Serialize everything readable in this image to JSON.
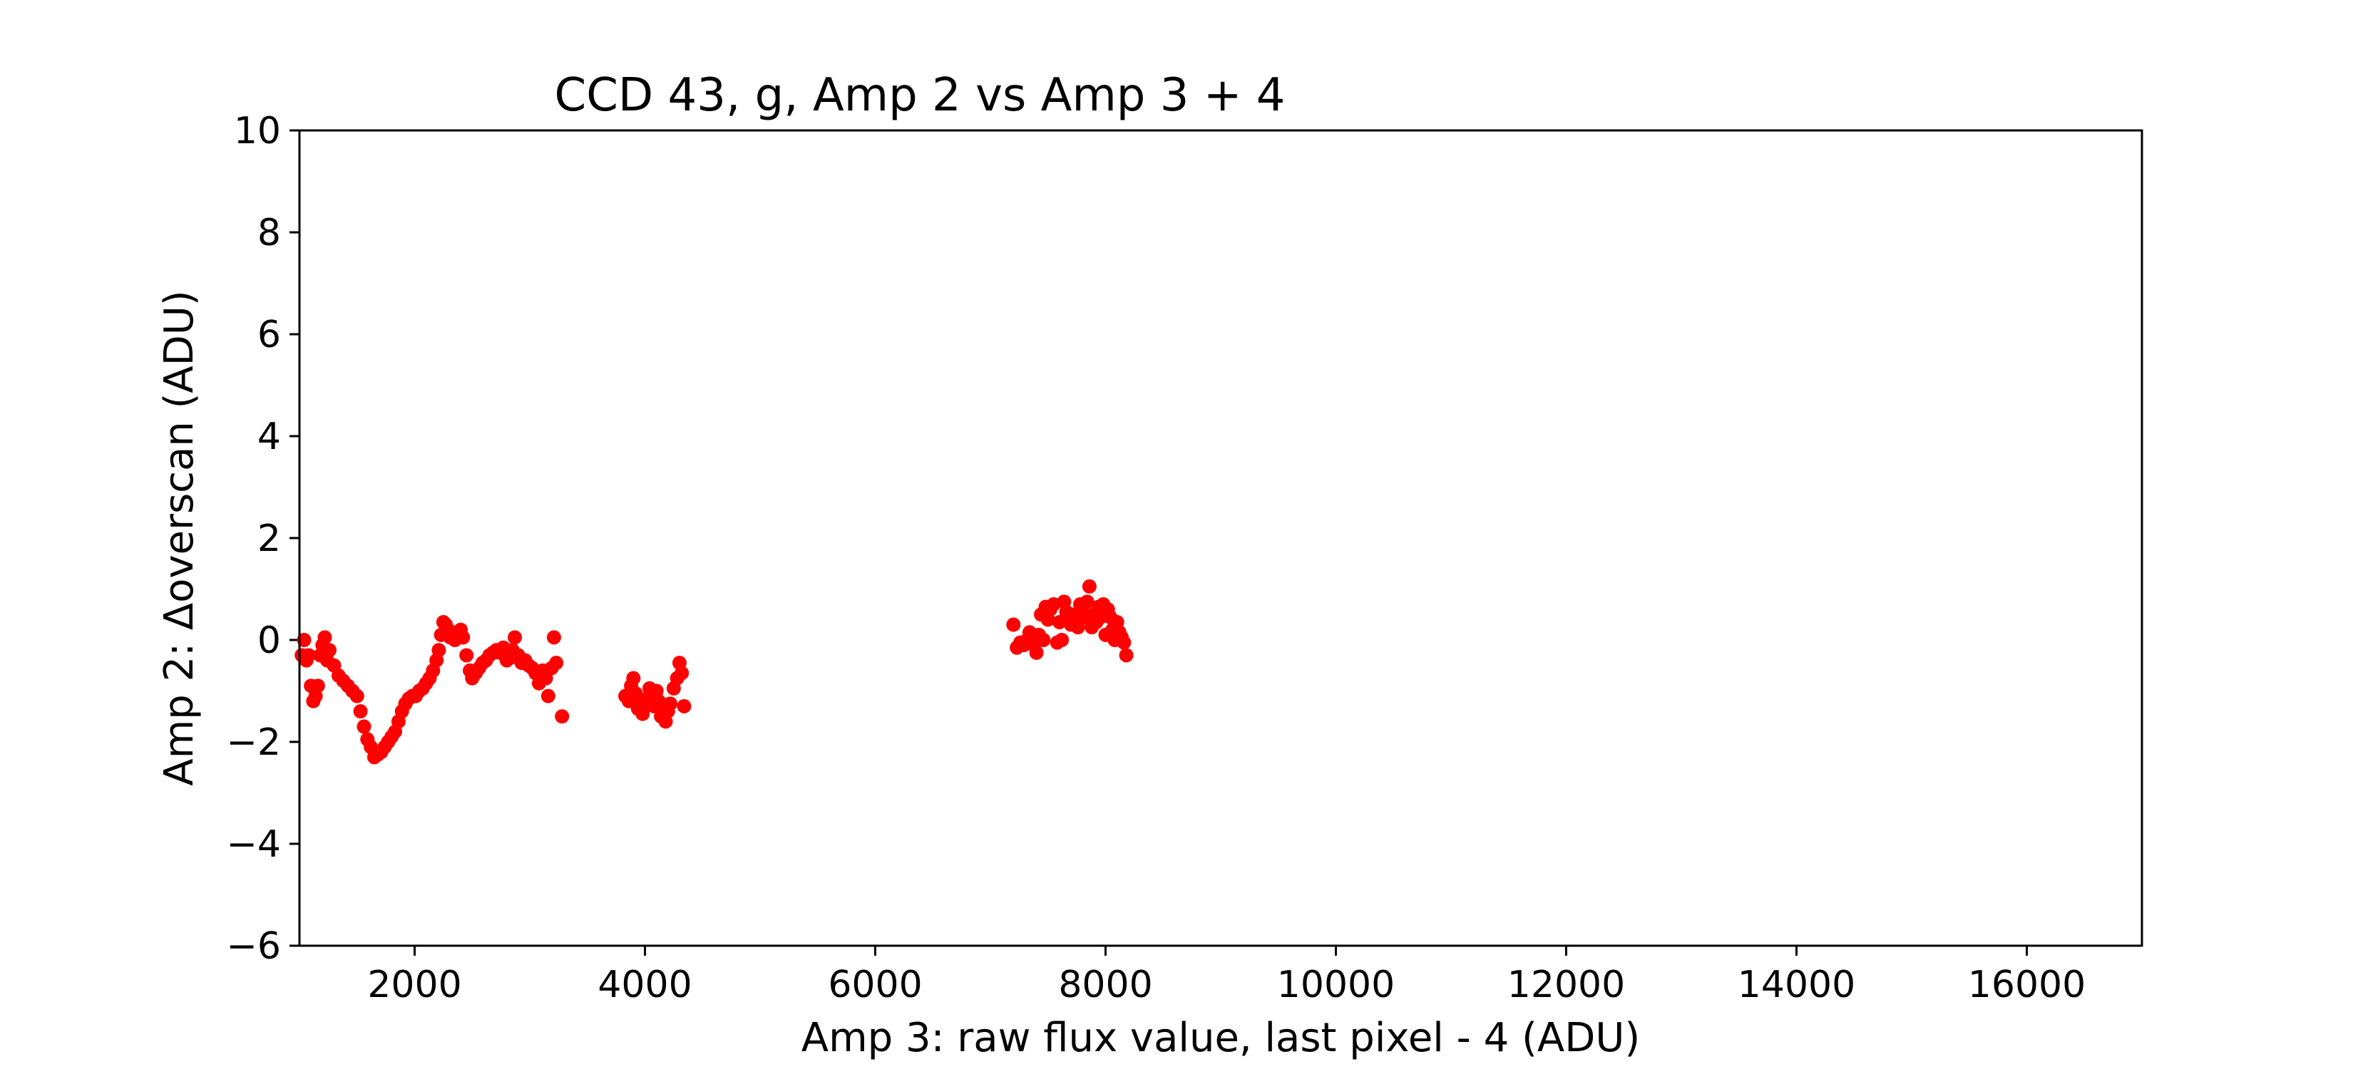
{
  "chart_data": {
    "type": "scatter",
    "title": "CCD 43, g, Amp 2 vs Amp 3 + 4",
    "xlabel": "Amp 3: raw flux value, last pixel - 4 (ADU)",
    "ylabel": "Amp 2: Δoverscan (ADU)",
    "xlim": [
      1000,
      17000
    ],
    "ylim": [
      -6,
      10
    ],
    "x_ticks": [
      2000,
      4000,
      6000,
      8000,
      10000,
      12000,
      14000,
      16000
    ],
    "x_tick_labels": [
      "2000",
      "4000",
      "6000",
      "8000",
      "10000",
      "12000",
      "14000",
      "16000"
    ],
    "y_ticks": [
      -6,
      -4,
      -2,
      0,
      2,
      4,
      6,
      8,
      10
    ],
    "y_tick_labels": [
      "−6",
      "−4",
      "−2",
      "0",
      "2",
      "4",
      "6",
      "8",
      "10"
    ],
    "grid": false,
    "marker_color": "#ff0000",
    "series": [
      {
        "points": [
          [
            1020,
            -0.3
          ],
          [
            1040,
            0.0
          ],
          [
            1060,
            -0.4
          ],
          [
            1080,
            -0.3
          ],
          [
            1100,
            -0.9
          ],
          [
            1120,
            -1.2
          ],
          [
            1140,
            -1.1
          ],
          [
            1160,
            -0.9
          ],
          [
            1180,
            -0.3
          ],
          [
            1200,
            -0.1
          ],
          [
            1220,
            0.05
          ],
          [
            1240,
            -0.4
          ],
          [
            1260,
            -0.2
          ],
          [
            1300,
            -0.5
          ],
          [
            1340,
            -0.7
          ],
          [
            1380,
            -0.8
          ],
          [
            1420,
            -0.9
          ],
          [
            1460,
            -1.0
          ],
          [
            1500,
            -1.1
          ],
          [
            1530,
            -1.4
          ],
          [
            1560,
            -1.7
          ],
          [
            1590,
            -1.95
          ],
          [
            1620,
            -2.1
          ],
          [
            1650,
            -2.3
          ],
          [
            1680,
            -2.25
          ],
          [
            1710,
            -2.2
          ],
          [
            1740,
            -2.1
          ],
          [
            1770,
            -2.0
          ],
          [
            1800,
            -1.9
          ],
          [
            1830,
            -1.8
          ],
          [
            1860,
            -1.6
          ],
          [
            1890,
            -1.4
          ],
          [
            1920,
            -1.25
          ],
          [
            1950,
            -1.15
          ],
          [
            1980,
            -1.1
          ],
          [
            2010,
            -1.1
          ],
          [
            2040,
            -1.0
          ],
          [
            2070,
            -0.95
          ],
          [
            2100,
            -0.85
          ],
          [
            2130,
            -0.75
          ],
          [
            2160,
            -0.6
          ],
          [
            2190,
            -0.4
          ],
          [
            2210,
            -0.2
          ],
          [
            2230,
            0.1
          ],
          [
            2250,
            0.35
          ],
          [
            2270,
            0.3
          ],
          [
            2290,
            0.2
          ],
          [
            2310,
            0.05
          ],
          [
            2330,
            0.15
          ],
          [
            2350,
            0.0
          ],
          [
            2380,
            0.1
          ],
          [
            2400,
            0.2
          ],
          [
            2420,
            0.05
          ],
          [
            2450,
            -0.3
          ],
          [
            2480,
            -0.6
          ],
          [
            2500,
            -0.75
          ],
          [
            2530,
            -0.65
          ],
          [
            2560,
            -0.55
          ],
          [
            2590,
            -0.45
          ],
          [
            2620,
            -0.4
          ],
          [
            2650,
            -0.3
          ],
          [
            2680,
            -0.25
          ],
          [
            2710,
            -0.2
          ],
          [
            2740,
            -0.25
          ],
          [
            2770,
            -0.15
          ],
          [
            2800,
            -0.4
          ],
          [
            2830,
            -0.35
          ],
          [
            2850,
            -0.2
          ],
          [
            2870,
            0.05
          ],
          [
            2900,
            -0.3
          ],
          [
            2930,
            -0.45
          ],
          [
            2960,
            -0.4
          ],
          [
            2990,
            -0.5
          ],
          [
            3020,
            -0.55
          ],
          [
            3050,
            -0.65
          ],
          [
            3080,
            -0.85
          ],
          [
            3110,
            -0.6
          ],
          [
            3140,
            -0.75
          ],
          [
            3160,
            -1.1
          ],
          [
            3190,
            -0.55
          ],
          [
            3210,
            0.05
          ],
          [
            3230,
            -0.45
          ],
          [
            3280,
            -1.5
          ],
          [
            3830,
            -1.1
          ],
          [
            3860,
            -1.2
          ],
          [
            3880,
            -0.9
          ],
          [
            3900,
            -0.75
          ],
          [
            3920,
            -1.05
          ],
          [
            3940,
            -1.35
          ],
          [
            3960,
            -1.2
          ],
          [
            3980,
            -1.45
          ],
          [
            4000,
            -1.3
          ],
          [
            4020,
            -1.15
          ],
          [
            4040,
            -0.95
          ],
          [
            4060,
            -1.1
          ],
          [
            4080,
            -1.3
          ],
          [
            4100,
            -1.0
          ],
          [
            4120,
            -1.2
          ],
          [
            4140,
            -1.5
          ],
          [
            4160,
            -1.35
          ],
          [
            4180,
            -1.6
          ],
          [
            4200,
            -1.4
          ],
          [
            4220,
            -1.25
          ],
          [
            4250,
            -0.95
          ],
          [
            4280,
            -0.75
          ],
          [
            4300,
            -0.45
          ],
          [
            4320,
            -0.65
          ],
          [
            4340,
            -1.3
          ],
          [
            7200,
            0.3
          ],
          [
            7230,
            -0.15
          ],
          [
            7260,
            -0.05
          ],
          [
            7290,
            -0.1
          ],
          [
            7320,
            0.0
          ],
          [
            7340,
            0.15
          ],
          [
            7360,
            0.05
          ],
          [
            7380,
            -0.1
          ],
          [
            7400,
            -0.25
          ],
          [
            7420,
            0.1
          ],
          [
            7440,
            0.5
          ],
          [
            7460,
            0.0
          ],
          [
            7480,
            0.65
          ],
          [
            7500,
            0.4
          ],
          [
            7520,
            0.6
          ],
          [
            7550,
            0.7
          ],
          [
            7580,
            -0.05
          ],
          [
            7600,
            0.35
          ],
          [
            7620,
            0.0
          ],
          [
            7640,
            0.75
          ],
          [
            7660,
            0.55
          ],
          [
            7680,
            0.45
          ],
          [
            7700,
            0.3
          ],
          [
            7720,
            0.5
          ],
          [
            7740,
            0.35
          ],
          [
            7760,
            0.25
          ],
          [
            7780,
            0.7
          ],
          [
            7800,
            0.6
          ],
          [
            7820,
            0.45
          ],
          [
            7840,
            0.75
          ],
          [
            7860,
            1.05
          ],
          [
            7880,
            0.25
          ],
          [
            7900,
            0.5
          ],
          [
            7920,
            0.35
          ],
          [
            7940,
            0.65
          ],
          [
            7960,
            0.45
          ],
          [
            7980,
            0.7
          ],
          [
            8000,
            0.1
          ],
          [
            8020,
            0.6
          ],
          [
            8040,
            0.45
          ],
          [
            8060,
            0.2
          ],
          [
            8080,
            0.0
          ],
          [
            8100,
            0.35
          ],
          [
            8120,
            0.15
          ],
          [
            8140,
            0.05
          ],
          [
            8160,
            -0.05
          ],
          [
            8180,
            -0.3
          ]
        ]
      }
    ]
  }
}
